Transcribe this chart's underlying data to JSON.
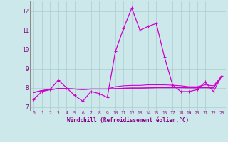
{
  "xlabel": "Windchill (Refroidissement éolien,°C)",
  "bg_color": "#cce8ea",
  "grid_color": "#aacccc",
  "line_color": "#cc00cc",
  "spine_color": "#888888",
  "tick_color": "#880088",
  "xlim": [
    -0.5,
    23.5
  ],
  "ylim": [
    6.8,
    12.5
  ],
  "yticks": [
    7,
    8,
    9,
    10,
    11,
    12
  ],
  "xticks": [
    0,
    1,
    2,
    3,
    4,
    5,
    6,
    7,
    8,
    9,
    10,
    11,
    12,
    13,
    14,
    15,
    16,
    17,
    18,
    19,
    20,
    21,
    22,
    23
  ],
  "series_main": [
    7.4,
    7.8,
    7.9,
    8.4,
    8.0,
    7.6,
    7.3,
    7.8,
    7.7,
    7.5,
    9.9,
    11.1,
    12.15,
    11.0,
    11.2,
    11.35,
    9.6,
    8.15,
    7.8,
    7.8,
    7.9,
    8.3,
    7.8,
    8.6
  ],
  "series_flat1": [
    7.75,
    7.85,
    7.9,
    7.95,
    7.95,
    7.93,
    7.92,
    7.93,
    7.93,
    7.93,
    7.95,
    7.97,
    7.98,
    7.98,
    7.99,
    8.0,
    8.0,
    8.0,
    8.0,
    8.0,
    8.0,
    8.0,
    7.99,
    8.6
  ],
  "series_flat2": [
    7.75,
    7.85,
    7.9,
    7.95,
    7.95,
    7.93,
    7.91,
    7.93,
    7.93,
    7.93,
    7.95,
    7.97,
    7.98,
    7.98,
    7.99,
    8.0,
    8.0,
    8.0,
    8.0,
    7.99,
    7.99,
    8.0,
    7.99,
    8.6
  ],
  "series_grow": [
    7.75,
    7.85,
    7.9,
    7.95,
    7.95,
    7.93,
    7.91,
    7.93,
    7.93,
    7.93,
    8.05,
    8.1,
    8.12,
    8.12,
    8.15,
    8.15,
    8.15,
    8.13,
    8.1,
    8.05,
    8.05,
    8.15,
    8.1,
    8.6
  ]
}
